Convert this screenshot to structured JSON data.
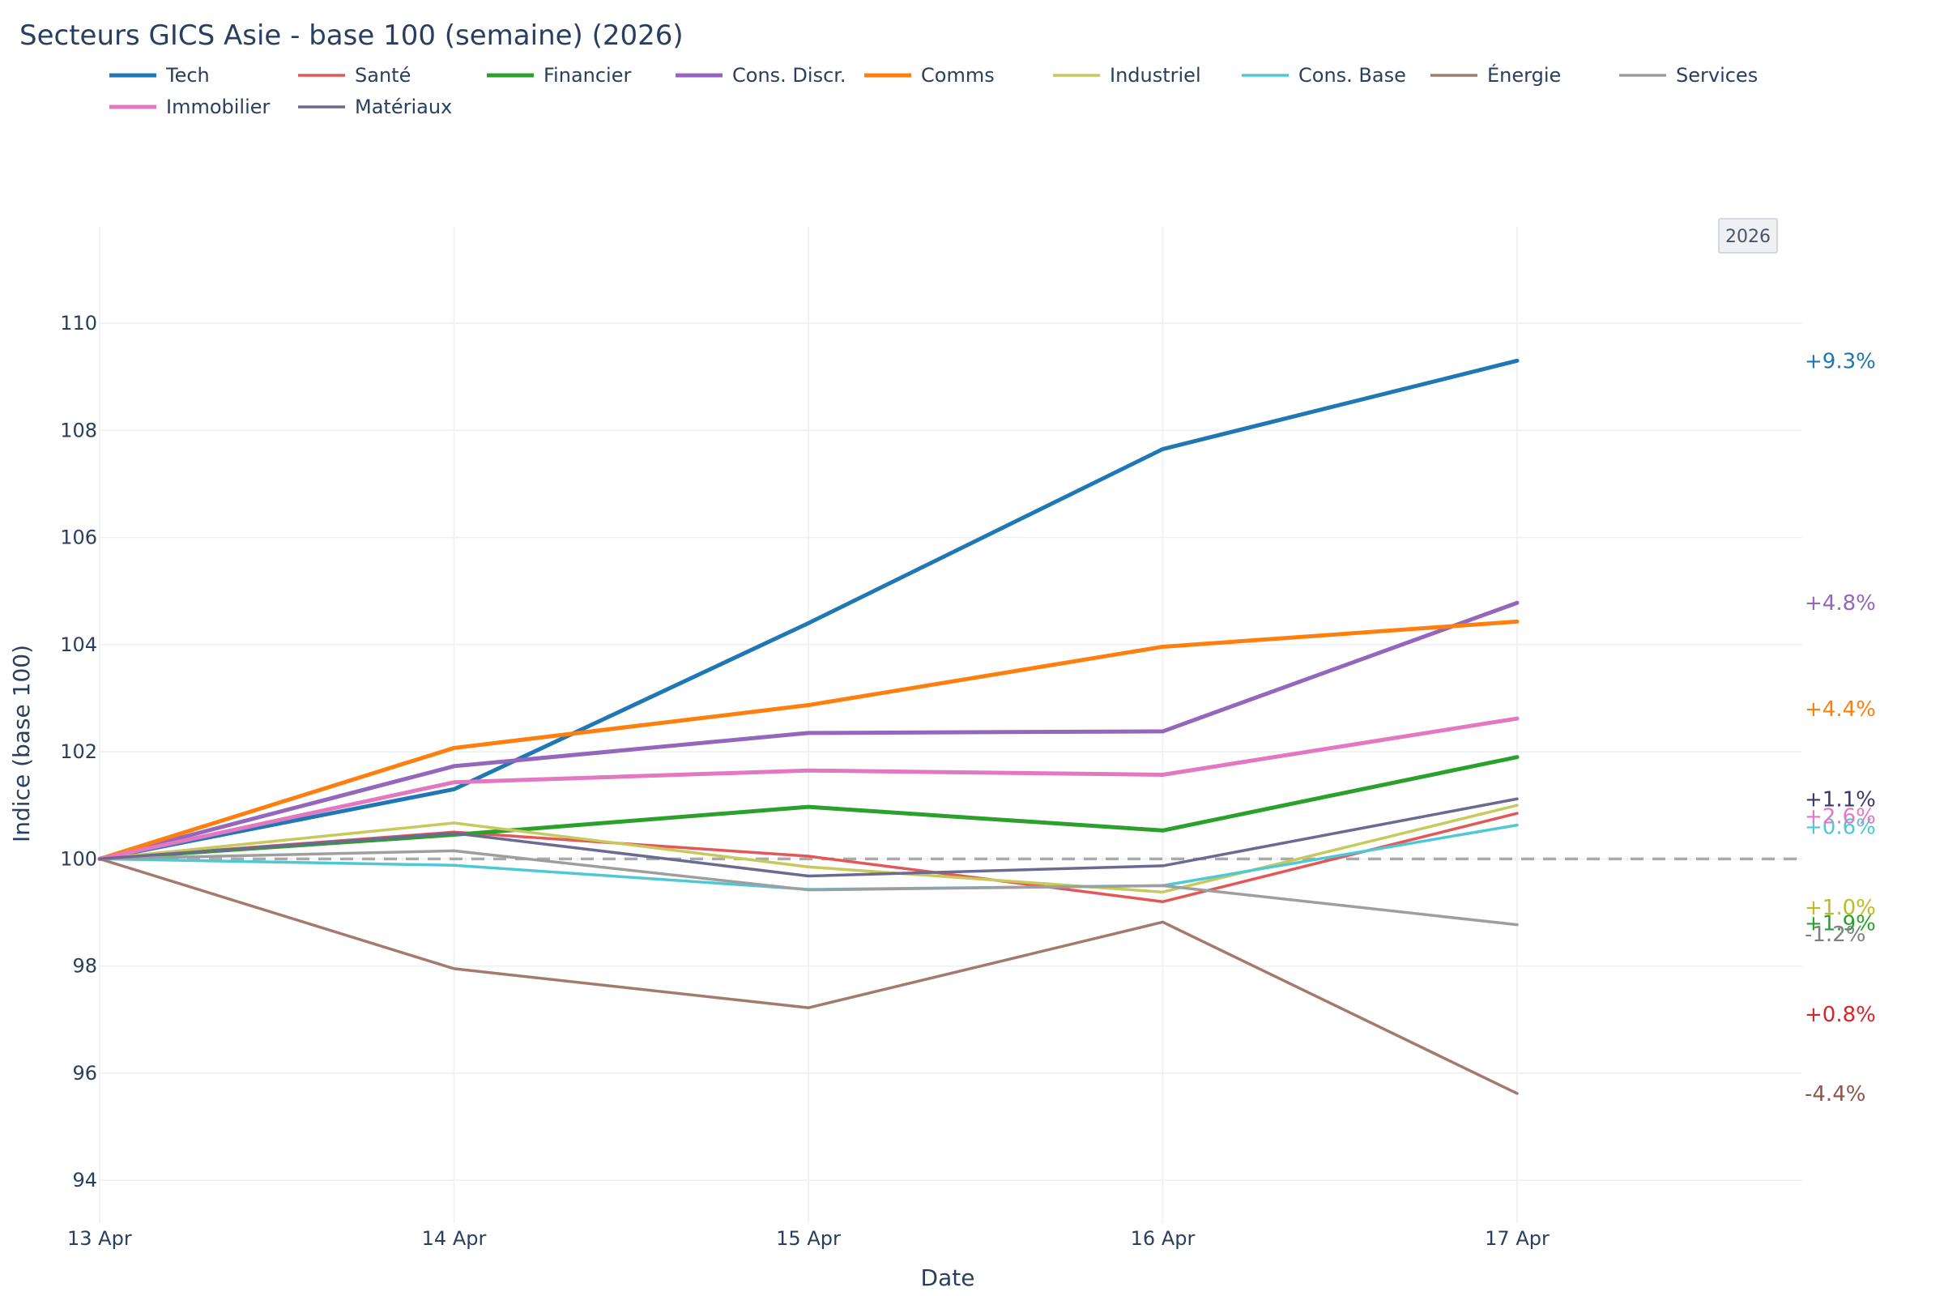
{
  "chart_data": {
    "type": "line",
    "title": "Secteurs GICS Asie - base 100 (semaine) (2026)",
    "xlabel": "Date",
    "ylabel": "Indice (base 100)",
    "x": [
      "13 Apr",
      "14 Apr",
      "15 Apr",
      "16 Apr",
      "17 Apr"
    ],
    "ylim": [
      93.2,
      111.8
    ],
    "yticks": [
      94,
      96,
      98,
      100,
      102,
      104,
      106,
      108,
      110
    ],
    "baseline": 100,
    "year_badge": "2026",
    "grid": true,
    "legend_position": "top-left",
    "series": [
      {
        "name": "Tech",
        "color": "#1f77b4",
        "width": 5,
        "values": [
          100,
          101.3,
          104.4,
          107.65,
          109.3
        ],
        "end_label": "+9.3%",
        "label_y": 109.3
      },
      {
        "name": "Santé",
        "color": "#e45756",
        "width": 3.5,
        "values": [
          100,
          100.5,
          100.05,
          99.2,
          100.85
        ],
        "end_label": "+0.8%",
        "label_color": "#d62728",
        "label_y": 97.1
      },
      {
        "name": "Financier",
        "color": "#2ca02c",
        "width": 5,
        "values": [
          100,
          100.45,
          100.97,
          100.53,
          101.9
        ],
        "end_label": "+1.9%",
        "label_y": 98.8
      },
      {
        "name": "Cons. Discr.",
        "color": "#9467bd",
        "width": 5,
        "values": [
          100,
          101.73,
          102.35,
          102.38,
          104.78
        ],
        "end_label": "+4.8%",
        "label_y": 104.78
      },
      {
        "name": "Comms",
        "color": "#ff7f0e",
        "width": 5,
        "values": [
          100,
          102.07,
          102.87,
          103.96,
          104.43
        ],
        "end_label": "+4.4%",
        "label_y": 102.8
      },
      {
        "name": "Industriel",
        "color": "#c7c95a",
        "width": 3.5,
        "values": [
          100,
          100.67,
          99.85,
          99.38,
          101.0
        ],
        "end_label": "+1.0%",
        "label_color": "#bcbd22",
        "label_y": 99.1
      },
      {
        "name": "Cons. Base",
        "color": "#4fc8d6",
        "width": 3.5,
        "values": [
          100,
          99.88,
          99.43,
          99.5,
          100.63
        ],
        "end_label": "+0.6%",
        "label_y": 100.6
      },
      {
        "name": "Énergie",
        "color": "#a47a6e",
        "width": 3.5,
        "values": [
          100,
          97.95,
          97.22,
          98.82,
          95.62
        ],
        "end_label": "-4.4%",
        "label_color": "#8c564b",
        "label_y": 95.62
      },
      {
        "name": "Services",
        "color": "#9e9e9e",
        "width": 3.5,
        "values": [
          100,
          100.15,
          99.42,
          99.5,
          98.77
        ],
        "end_label": "-1.2%",
        "label_color": "#7f7f7f",
        "label_y": 98.6
      },
      {
        "name": "Immobilier",
        "color": "#e377c2",
        "width": 5,
        "values": [
          100,
          101.43,
          101.65,
          101.57,
          102.62
        ],
        "end_label": "+2.6%",
        "label_y": 100.8
      },
      {
        "name": "Matériaux",
        "color": "#6a6a92",
        "width": 3.5,
        "values": [
          100,
          100.48,
          99.68,
          99.87,
          101.12
        ],
        "end_label": "+1.1%",
        "label_color": "#3a3a6a",
        "label_y": 101.12
      }
    ]
  }
}
